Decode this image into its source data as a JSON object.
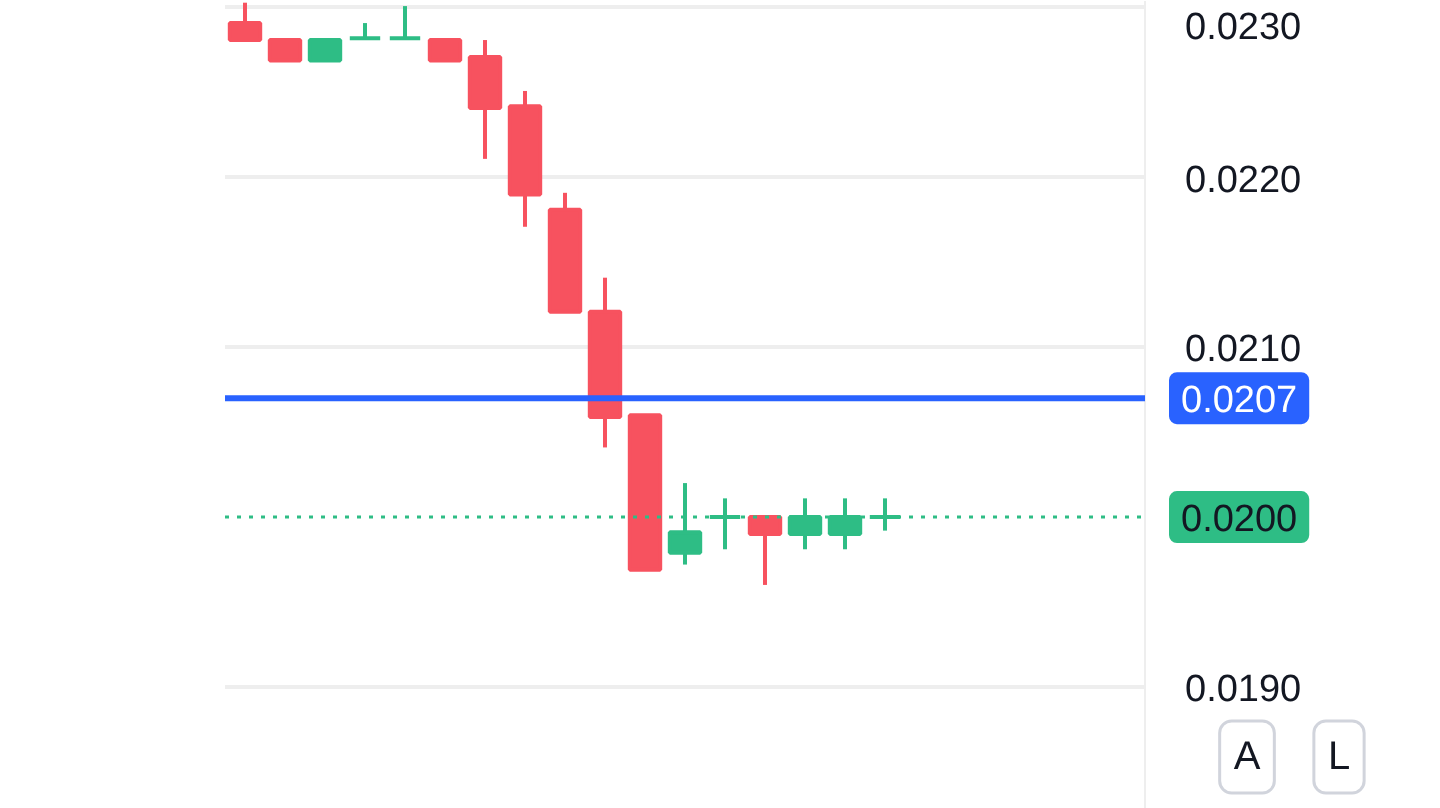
{
  "chart_data": {
    "type": "candlestick",
    "categories": [
      null,
      null,
      null,
      null,
      null,
      null,
      null,
      null,
      null,
      null,
      null,
      null,
      null,
      null,
      null,
      null,
      null,
      null,
      null,
      null,
      null,
      null,
      null
    ],
    "ohlc": [
      [
        0.02291,
        0.02303,
        0.02281,
        0.02281
      ],
      [
        0.02281,
        0.02281,
        0.02269,
        0.02269
      ],
      [
        0.02269,
        0.02281,
        0.02269,
        0.02281
      ],
      [
        0.02282,
        0.02291,
        0.02282,
        0.02282
      ],
      [
        0.02282,
        0.02301,
        0.02282,
        0.02282
      ],
      [
        0.02281,
        0.02281,
        0.02269,
        0.02269
      ],
      [
        0.02271,
        0.02281,
        0.02211,
        0.02241
      ],
      [
        0.02242,
        0.02251,
        0.02171,
        0.0219
      ],
      [
        0.02181,
        0.02191,
        0.02121,
        0.02121
      ],
      [
        0.02121,
        0.02141,
        0.02041,
        0.02059
      ],
      [
        0.0206,
        0.0206,
        0.01969,
        0.01969
      ],
      [
        0.01979,
        0.0202,
        0.01972,
        0.01991
      ],
      [
        0.02,
        0.02011,
        0.01981,
        0.02
      ],
      [
        0.02,
        0.02,
        0.0196,
        0.0199
      ],
      [
        0.0199,
        0.02011,
        0.01981,
        0.02
      ],
      [
        0.0199,
        0.02011,
        0.01981,
        0.02
      ],
      [
        0.02,
        0.02011,
        0.01992,
        0.02
      ],
      null,
      null,
      null,
      null,
      null,
      null
    ],
    "ylim": [
      0.01828,
      0.02304
    ],
    "yticks": [
      {
        "value": 0.019,
        "label": "0.0190"
      },
      {
        "value": 0.021,
        "label": "0.0210"
      },
      {
        "value": 0.022,
        "label": "0.0220"
      },
      {
        "value": 0.023,
        "label": "0.0230"
      }
    ],
    "grid": "y",
    "tick_labels": "y",
    "ref_lines": [
      {
        "axis": "y",
        "value": 0.0207,
        "label": "0.0207",
        "color": "#2962ff",
        "line_style": "solid"
      },
      {
        "axis": "y",
        "value": 0.02,
        "label": "0.0200",
        "color": "#2ebd85",
        "line_style": "dotted"
      }
    ],
    "annotations": [
      "A",
      "L"
    ]
  }
}
